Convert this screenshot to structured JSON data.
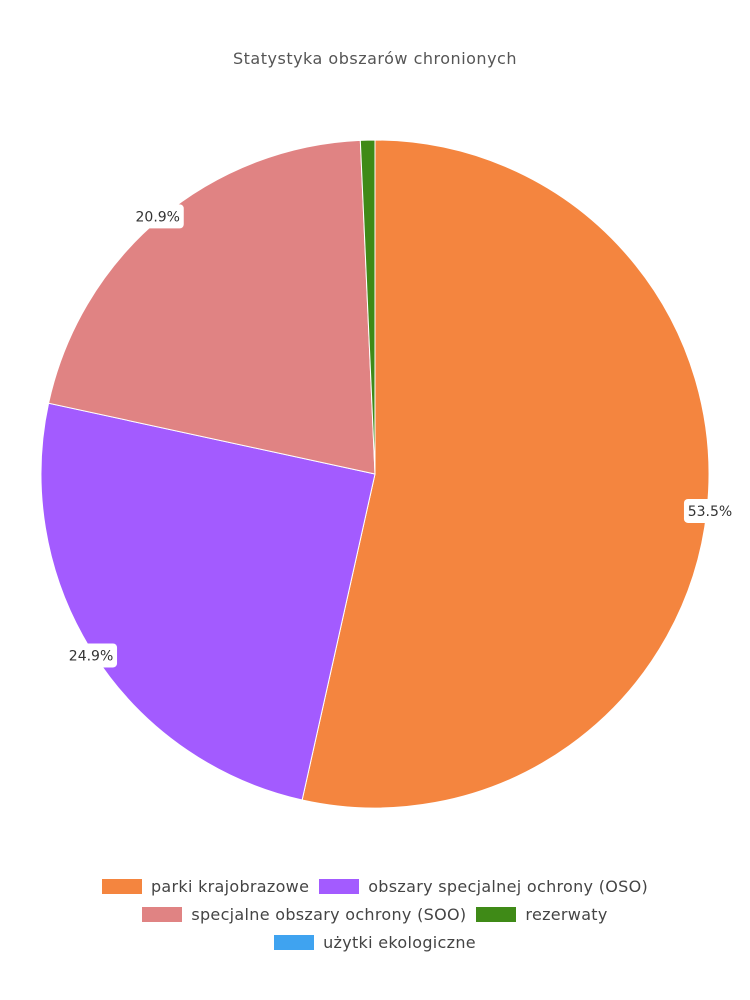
{
  "chart_data": {
    "type": "pie",
    "title": "Statystyka obszarów chronionych",
    "slices": [
      {
        "label": "parki krajobrazowe",
        "value": 53.5,
        "display": "53.5%",
        "color": "#f4853f"
      },
      {
        "label": "obszary specjalnej ochrony (OSO)",
        "value": 24.9,
        "display": "24.9%",
        "color": "#a35bff"
      },
      {
        "label": "specjalne obszary ochrony (SOO)",
        "value": 20.9,
        "display": "20.9%",
        "color": "#e08383"
      },
      {
        "label": "rezerwaty",
        "value": 0.7,
        "display": "",
        "color": "#3f8a17"
      },
      {
        "label": "użytki ekologiczne",
        "value": 0.0,
        "display": "",
        "color": "#3fa3f0"
      }
    ],
    "legend_position": "bottom"
  }
}
